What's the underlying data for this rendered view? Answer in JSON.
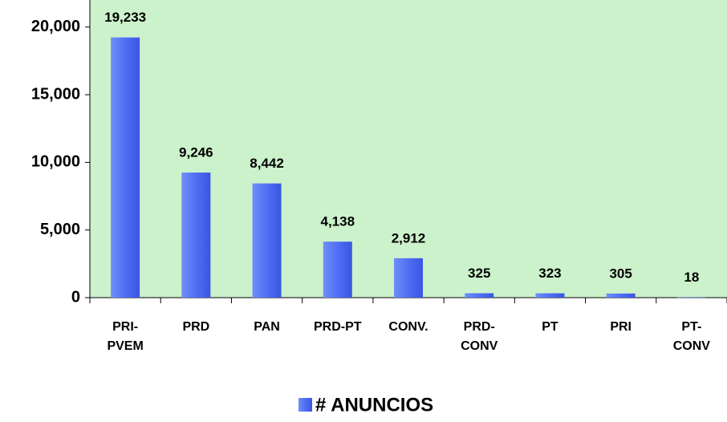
{
  "chart_data": {
    "type": "bar",
    "categories": [
      "PRI-PVEM",
      "PRD",
      "PAN",
      "PRD-PT",
      "CONV.",
      "PRD-CONV",
      "PT",
      "PRI",
      "PT-CONV"
    ],
    "series": [
      {
        "name": "# ANUNCIOS",
        "color": "#4f6ef5",
        "values": [
          19233,
          9246,
          8442,
          4138,
          2912,
          325,
          323,
          305,
          18
        ],
        "value_labels": [
          "19,233",
          "9,246",
          "8,442",
          "4,138",
          "2,912",
          "325",
          "323",
          "305",
          "18"
        ]
      }
    ],
    "ylim": [
      0,
      22000
    ],
    "yticks": [
      0,
      {
        "value": 5000,
        "label": "5,000"
      },
      {
        "value": 10000,
        "label": "10,000"
      },
      {
        "value": 15000,
        "label": "15,000"
      },
      {
        "value": 20000,
        "label": "20,000"
      }
    ],
    "legend": "bottom"
  }
}
